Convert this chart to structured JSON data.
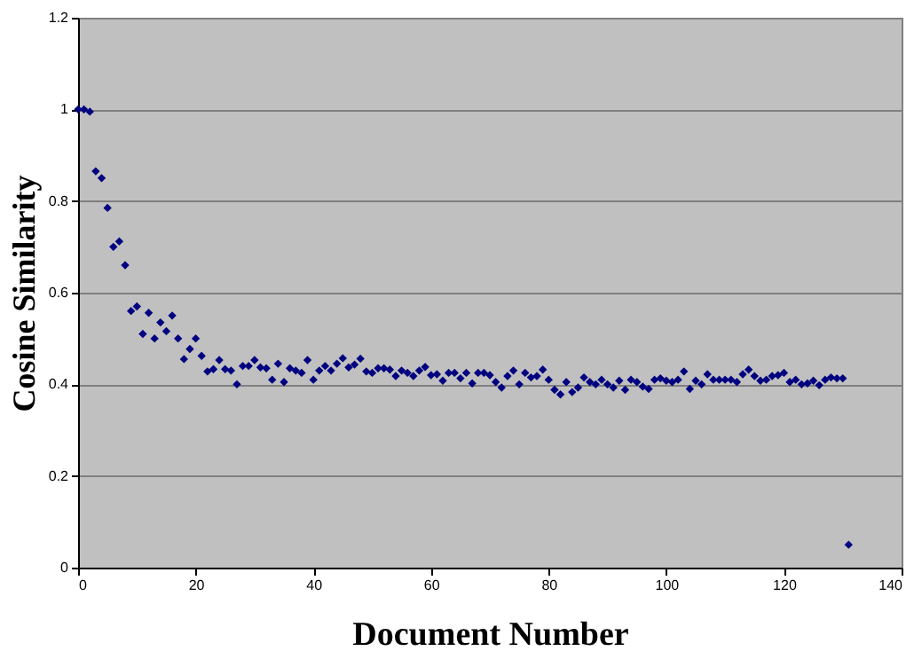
{
  "chart_data": {
    "type": "scatter",
    "xlabel": "Document Number",
    "ylabel": "Cosine Similarity",
    "x": [
      0,
      1,
      2,
      3,
      4,
      5,
      6,
      7,
      8,
      9,
      10,
      11,
      12,
      13,
      14,
      15,
      16,
      17,
      18,
      19,
      20,
      21,
      22,
      23,
      24,
      25,
      26,
      27,
      28,
      29,
      30,
      31,
      32,
      33,
      34,
      35,
      36,
      37,
      38,
      39,
      40,
      41,
      42,
      43,
      44,
      45,
      46,
      47,
      48,
      49,
      50,
      51,
      52,
      53,
      54,
      55,
      56,
      57,
      58,
      59,
      60,
      61,
      62,
      63,
      64,
      65,
      66,
      67,
      68,
      69,
      70,
      71,
      72,
      73,
      74,
      75,
      76,
      77,
      78,
      79,
      80,
      81,
      82,
      83,
      84,
      85,
      86,
      87,
      88,
      89,
      90,
      91,
      92,
      93,
      94,
      95,
      96,
      97,
      98,
      99,
      100,
      101,
      102,
      103,
      104,
      105,
      106,
      107,
      108,
      109,
      110,
      111,
      112,
      113,
      114,
      115,
      116,
      117,
      118,
      119,
      120,
      121,
      122,
      123,
      124,
      125,
      126,
      127,
      128,
      129,
      130,
      131
    ],
    "series": [
      {
        "color": "#000080",
        "values": [
          1.0,
          1.0,
          0.995,
          0.865,
          0.85,
          0.785,
          0.7,
          0.712,
          0.66,
          0.56,
          0.57,
          0.51,
          0.556,
          0.5,
          0.535,
          0.516,
          0.55,
          0.5,
          0.455,
          0.477,
          0.5,
          0.462,
          0.428,
          0.433,
          0.453,
          0.433,
          0.43,
          0.4,
          0.44,
          0.44,
          0.453,
          0.437,
          0.435,
          0.41,
          0.445,
          0.405,
          0.435,
          0.43,
          0.425,
          0.453,
          0.41,
          0.43,
          0.44,
          0.43,
          0.445,
          0.457,
          0.437,
          0.443,
          0.456,
          0.428,
          0.425,
          0.435,
          0.435,
          0.432,
          0.418,
          0.43,
          0.425,
          0.418,
          0.43,
          0.438,
          0.42,
          0.422,
          0.408,
          0.425,
          0.425,
          0.413,
          0.425,
          0.402,
          0.425,
          0.425,
          0.42,
          0.405,
          0.393,
          0.418,
          0.43,
          0.4,
          0.425,
          0.415,
          0.418,
          0.432,
          0.41,
          0.388,
          0.378,
          0.405,
          0.383,
          0.393,
          0.415,
          0.405,
          0.4,
          0.41,
          0.4,
          0.393,
          0.408,
          0.388,
          0.41,
          0.405,
          0.395,
          0.39,
          0.41,
          0.413,
          0.408,
          0.405,
          0.41,
          0.428,
          0.39,
          0.408,
          0.4,
          0.422,
          0.41,
          0.41,
          0.41,
          0.41,
          0.405,
          0.422,
          0.432,
          0.418,
          0.408,
          0.41,
          0.418,
          0.42,
          0.425,
          0.405,
          0.41,
          0.4,
          0.402,
          0.408,
          0.398,
          0.41,
          0.415,
          0.413,
          0.413,
          0.05
        ]
      }
    ],
    "xlim": [
      0,
      140
    ],
    "xticks": [
      0,
      20,
      40,
      60,
      80,
      100,
      120,
      140
    ],
    "ylim": [
      0,
      1.2
    ],
    "yticks": [
      0,
      0.2,
      0.4,
      0.6,
      0.8,
      1,
      1.2
    ],
    "grid": "y",
    "marker": "diamond"
  }
}
